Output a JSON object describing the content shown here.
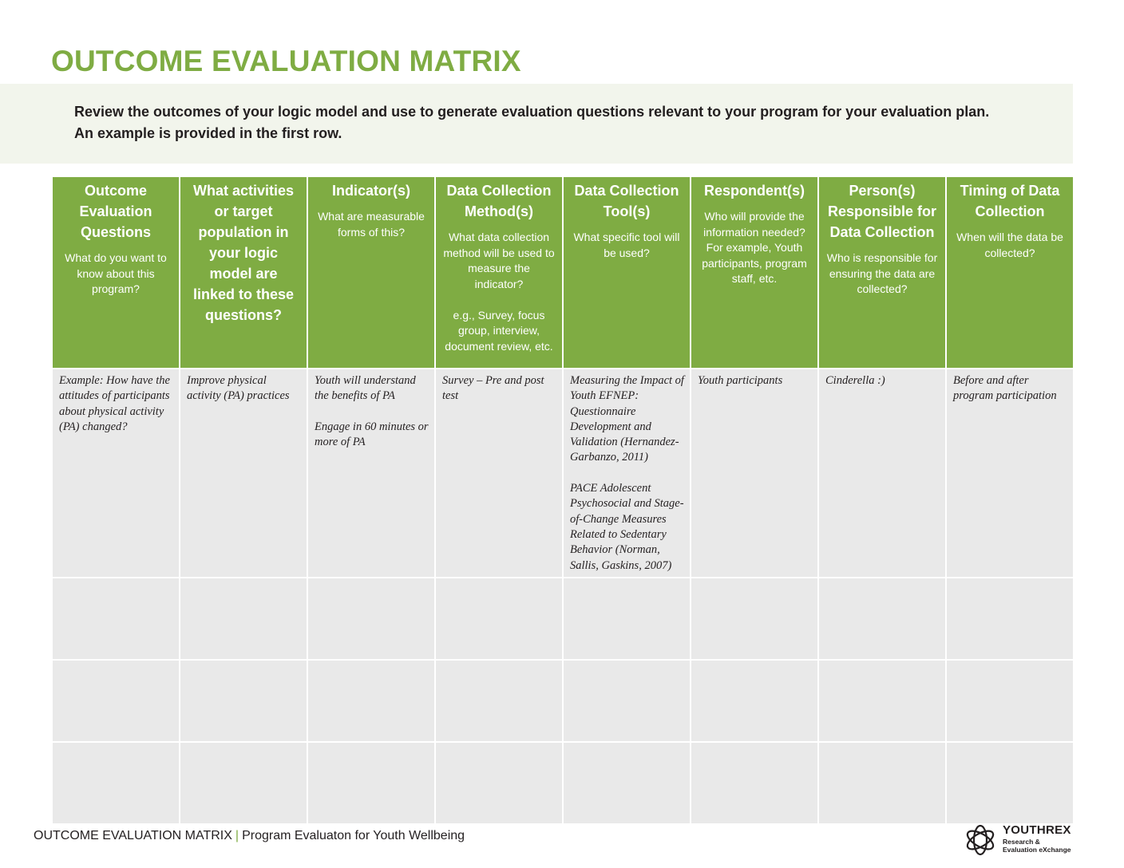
{
  "title": "OUTCOME EVALUATION MATRIX",
  "intro": "Review the outcomes of your logic model and use to generate evaluation questions relevant to your program for your evaluation plan. An example is provided in the first row.",
  "colors": {
    "accent": "#7fac43",
    "band": "#f2f5ec",
    "cell": "#e9e9e9"
  },
  "columns": [
    {
      "title": "Outcome Evaluation Questions",
      "subtitle": "What do you want to know about this program?"
    },
    {
      "title": "What activities or target population in your logic model are linked to these questions?",
      "subtitle": ""
    },
    {
      "title": "Indicator(s)",
      "subtitle": "What are measurable forms of this?"
    },
    {
      "title": "Data Collection Method(s)",
      "subtitle": "What data collection method will be used to measure the indicator?\n\ne.g., Survey, focus group, interview, document review, etc."
    },
    {
      "title": "Data Collection Tool(s)",
      "subtitle": "What specific tool will be used?"
    },
    {
      "title": "Respondent(s)",
      "subtitle": "Who will provide the information needed? For example, Youth participants, program staff, etc."
    },
    {
      "title": "Person(s) Responsible for Data Collection",
      "subtitle": "Who is responsible for ensuring the data are collected?"
    },
    {
      "title": "Timing of Data Collection",
      "subtitle": "When will the data be collected?"
    }
  ],
  "example_row": [
    "Example: How have the attitudes of participants about physical activity (PA) changed?",
    "Improve physical activity (PA) practices",
    "Youth will understand the benefits of PA\n\nEngage in 60 minutes or more of PA",
    "Survey – Pre and post test",
    "Measuring the Impact of Youth EFNEP: Questionnaire Development and Validation (Hernandez-Garbanzo, 2011)\n\n PACE Adolescent Psychosocial and Stage-of-Change Measures Related to Sedentary Behavior (Norman, Sallis, Gaskins, 2007)",
    "Youth participants",
    "Cinderella :)",
    "Before and after program participation"
  ],
  "blank_rows": 3,
  "footer": {
    "doc_title": "OUTCOME EVALUATION MATRIX",
    "separator": "|",
    "subtitle": "Program Evaluaton for Youth Wellbeing"
  },
  "logo": {
    "name": "YOUTHREX",
    "tagline": "Research &\nEvaluation eXchange",
    "icon": "youthrex-knot-icon"
  }
}
